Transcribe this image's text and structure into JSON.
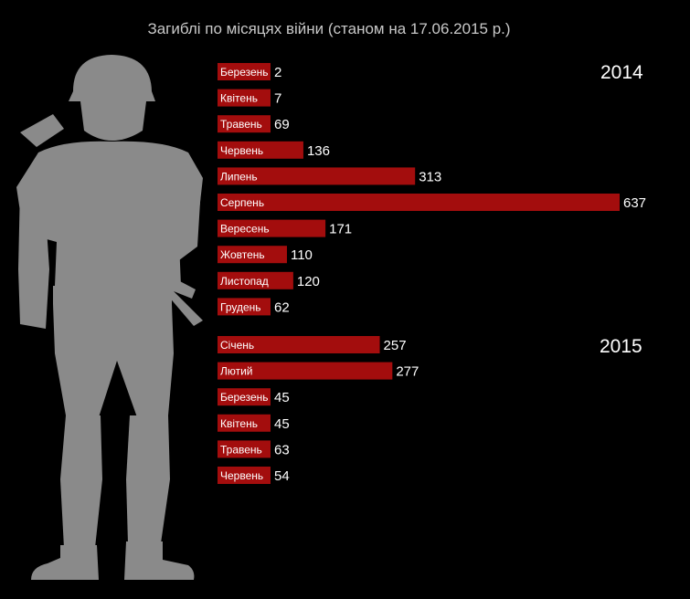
{
  "colors": {
    "bar": "#a30d0d",
    "background": "#000000",
    "silhouette": "#8a8a8a"
  },
  "icons": {
    "figure": "soldier-silhouette-icon"
  },
  "chart_data": {
    "type": "bar",
    "orientation": "horizontal",
    "title": "Загиблі по місяцях війни (станом на 17.06.2015 р.)",
    "groups": [
      {
        "label": "2014",
        "categories": [
          "Березень",
          "Квітень",
          "Травень",
          "Червень",
          "Липень",
          "Серпень",
          "Вересень",
          "Жовтень",
          "Листопад",
          "Грудень"
        ],
        "values": [
          2,
          7,
          69,
          136,
          313,
          637,
          171,
          110,
          120,
          62
        ]
      },
      {
        "label": "2015",
        "categories": [
          "Січень",
          "Лютий",
          "Березень",
          "Квітень",
          "Травень",
          "Червень"
        ],
        "values": [
          257,
          277,
          45,
          45,
          63,
          54
        ]
      }
    ],
    "xlim": [
      0,
      637
    ],
    "grid": false,
    "legend": "none"
  }
}
